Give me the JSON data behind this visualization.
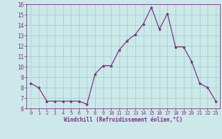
{
  "x": [
    0,
    1,
    2,
    3,
    4,
    5,
    6,
    7,
    8,
    9,
    10,
    11,
    12,
    13,
    14,
    15,
    16,
    17,
    18,
    19,
    20,
    21,
    22,
    23
  ],
  "y": [
    8.4,
    8.0,
    6.7,
    6.7,
    6.7,
    6.7,
    6.7,
    6.4,
    9.3,
    10.1,
    10.1,
    11.6,
    12.5,
    13.1,
    14.1,
    15.7,
    13.6,
    15.1,
    11.9,
    11.9,
    10.5,
    8.4,
    8.0,
    6.7
  ],
  "line_color": "#7b2f86",
  "marker": "*",
  "marker_size": 3,
  "bg_color": "#cce8e8",
  "grid_color": "#99cccc",
  "xlabel": "Windchill (Refroidissement éolien,°C)",
  "xlabel_color": "#7b2f86",
  "tick_color": "#7b2f86",
  "ylim": [
    6,
    16
  ],
  "xlim": [
    -0.5,
    23.5
  ],
  "yticks": [
    6,
    7,
    8,
    9,
    10,
    11,
    12,
    13,
    14,
    15,
    16
  ],
  "xticks": [
    0,
    1,
    2,
    3,
    4,
    5,
    6,
    7,
    8,
    9,
    10,
    11,
    12,
    13,
    14,
    15,
    16,
    17,
    18,
    19,
    20,
    21,
    22,
    23
  ]
}
